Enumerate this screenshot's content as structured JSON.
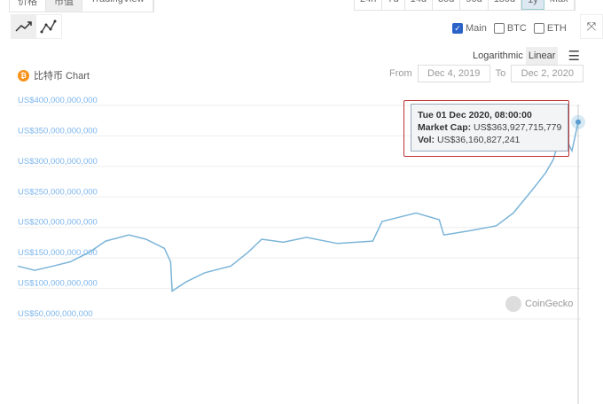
{
  "tabs": [
    {
      "label": "价格"
    },
    {
      "label": "市值",
      "active": true
    },
    {
      "label": "TradingView"
    }
  ],
  "ranges": [
    {
      "label": "24h"
    },
    {
      "label": "7d"
    },
    {
      "label": "14d"
    },
    {
      "label": "30d"
    },
    {
      "label": "90d"
    },
    {
      "label": "180d"
    },
    {
      "label": "1y",
      "active": true
    },
    {
      "label": "Max"
    }
  ],
  "series_toggles": [
    {
      "label": "Main",
      "checked": true
    },
    {
      "label": "BTC",
      "checked": false
    },
    {
      "label": "ETH",
      "checked": false
    }
  ],
  "scale": {
    "log": "Logarithmic",
    "linear": "Linear",
    "selected": "Linear"
  },
  "coin_icon": "bitcoin-icon",
  "chart_title": "比特币 Chart",
  "date_range": {
    "from_label": "From",
    "from": "Dec 4, 2019",
    "to_label": "To",
    "to": "Dec 2, 2020"
  },
  "tooltip": {
    "date": "Tue 01 Dec 2020, 08:00:00",
    "mcap_label": "Market Cap:",
    "mcap": "US$363,927,715,779",
    "vol_label": "Vol:",
    "vol": "US$36,160,827,241"
  },
  "watermark": "CoinGecko",
  "colors": {
    "line": "#7cb5d8",
    "tick": "#7cb5ec",
    "tooltip_border": "#b33333"
  },
  "chart_data": {
    "type": "line",
    "yticks": [
      "US$400,000,000,000",
      "US$350,000,000,000",
      "US$300,000,000,000",
      "US$250,000,000,000",
      "US$200,000,000,000",
      "US$150,000,000,000",
      "US$100,000,000,000",
      "US$50,000,000,000"
    ],
    "ylim": [
      50,
      400
    ],
    "yunit": "billion USD",
    "xlim": [
      "2019-12-04",
      "2020-12-01"
    ],
    "grid": true,
    "points": [
      [
        "2019-12-04",
        128
      ],
      [
        "2019-12-15",
        121
      ],
      [
        "2019-12-27",
        128
      ],
      [
        "2020-01-07",
        135
      ],
      [
        "2020-01-19",
        150
      ],
      [
        "2020-01-30",
        169
      ],
      [
        "2020-02-14",
        179
      ],
      [
        "2020-02-25",
        172
      ],
      [
        "2020-03-08",
        157
      ],
      [
        "2020-03-12",
        135
      ],
      [
        "2020-03-13",
        87
      ],
      [
        "2020-03-22",
        102
      ],
      [
        "2020-04-03",
        117
      ],
      [
        "2020-04-20",
        128
      ],
      [
        "2020-05-01",
        150
      ],
      [
        "2020-05-10",
        172
      ],
      [
        "2020-05-24",
        167
      ],
      [
        "2020-06-08",
        175
      ],
      [
        "2020-06-28",
        165
      ],
      [
        "2020-07-21",
        169
      ],
      [
        "2020-07-27",
        201
      ],
      [
        "2020-08-07",
        208
      ],
      [
        "2020-08-18",
        215
      ],
      [
        "2020-09-02",
        204
      ],
      [
        "2020-09-05",
        179
      ],
      [
        "2020-09-22",
        186
      ],
      [
        "2020-10-09",
        194
      ],
      [
        "2020-10-20",
        215
      ],
      [
        "2020-11-01",
        252
      ],
      [
        "2020-11-10",
        281
      ],
      [
        "2020-11-15",
        303
      ],
      [
        "2020-11-19",
        339
      ],
      [
        "2020-11-24",
        332
      ],
      [
        "2020-11-27",
        317
      ],
      [
        "2020-12-01",
        364
      ]
    ]
  }
}
